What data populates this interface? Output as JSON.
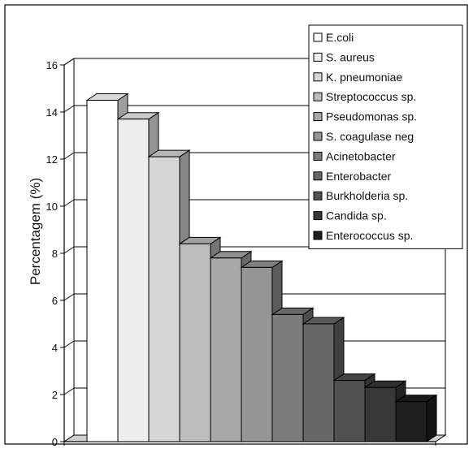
{
  "chart_data": {
    "type": "bar",
    "ylabel": "Percentagem (%)",
    "xlabel": "",
    "ylim": [
      0,
      16
    ],
    "yticks": [
      0,
      2,
      4,
      6,
      8,
      10,
      12,
      14,
      16
    ],
    "grid": true,
    "legend_position": "top-right",
    "style": "3d",
    "series": [
      {
        "name": "E.coli",
        "value": 14.5,
        "color": "#ffffff"
      },
      {
        "name": "S. aureus",
        "value": 13.7,
        "color": "#eeeeee"
      },
      {
        "name": "K. pneumoniae",
        "value": 12.1,
        "color": "#d6d6d6"
      },
      {
        "name": "Streptococcus sp.",
        "value": 8.4,
        "color": "#bdbdbd"
      },
      {
        "name": "Pseudomonas sp.",
        "value": 7.8,
        "color": "#a8a8a8"
      },
      {
        "name": "S. coagulase neg",
        "value": 7.4,
        "color": "#959595"
      },
      {
        "name": "Acinetobacter",
        "value": 5.4,
        "color": "#7c7c7c"
      },
      {
        "name": "Enterobacter",
        "value": 5.0,
        "color": "#676767"
      },
      {
        "name": "Burkholderia sp.",
        "value": 2.6,
        "color": "#505050"
      },
      {
        "name": "Candida sp.",
        "value": 2.3,
        "color": "#383838"
      },
      {
        "name": "Enterococcus sp.",
        "value": 1.7,
        "color": "#1e1e1e"
      }
    ]
  }
}
